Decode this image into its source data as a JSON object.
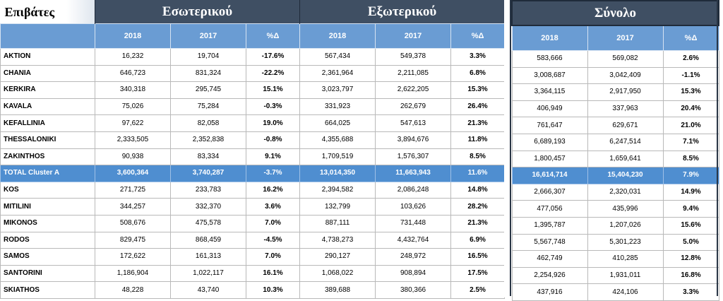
{
  "title": "Επιβάτες",
  "groups": {
    "domestic": "Εσωτερικού",
    "international": "Εξωτερικού",
    "total": "Σύνολο"
  },
  "subheaders": {
    "y2018": "2018",
    "y2017": "2017",
    "pct": "%Δ"
  },
  "rows": [
    {
      "name": "AKTION",
      "d18": "16,232",
      "d17": "19,704",
      "dp": "-17.6%",
      "i18": "567,434",
      "i17": "549,378",
      "ip": "3.3%",
      "t18": "583,666",
      "t17": "569,082",
      "tp": "2.6%"
    },
    {
      "name": "CHANIA",
      "d18": "646,723",
      "d17": "831,324",
      "dp": "-22.2%",
      "i18": "2,361,964",
      "i17": "2,211,085",
      "ip": "6.8%",
      "t18": "3,008,687",
      "t17": "3,042,409",
      "tp": "-1.1%"
    },
    {
      "name": "KERKIRA",
      "d18": "340,318",
      "d17": "295,745",
      "dp": "15.1%",
      "i18": "3,023,797",
      "i17": "2,622,205",
      "ip": "15.3%",
      "t18": "3,364,115",
      "t17": "2,917,950",
      "tp": "15.3%"
    },
    {
      "name": "KAVALA",
      "d18": "75,026",
      "d17": "75,284",
      "dp": "-0.3%",
      "i18": "331,923",
      "i17": "262,679",
      "ip": "26.4%",
      "t18": "406,949",
      "t17": "337,963",
      "tp": "20.4%"
    },
    {
      "name": "KEFALLINIA",
      "d18": "97,622",
      "d17": "82,058",
      "dp": "19.0%",
      "i18": "664,025",
      "i17": "547,613",
      "ip": "21.3%",
      "t18": "761,647",
      "t17": "629,671",
      "tp": "21.0%"
    },
    {
      "name": "THESSALONIKI",
      "d18": "2,333,505",
      "d17": "2,352,838",
      "dp": "-0.8%",
      "i18": "4,355,688",
      "i17": "3,894,676",
      "ip": "11.8%",
      "t18": "6,689,193",
      "t17": "6,247,514",
      "tp": "7.1%"
    },
    {
      "name": "ZAKINTHOS",
      "d18": "90,938",
      "d17": "83,334",
      "dp": "9.1%",
      "i18": "1,709,519",
      "i17": "1,576,307",
      "ip": "8.5%",
      "t18": "1,800,457",
      "t17": "1,659,641",
      "tp": "8.5%"
    },
    {
      "name": "TOTAL Cluster A",
      "d18": "3,600,364",
      "d17": "3,740,287",
      "dp": "-3.7%",
      "i18": "13,014,350",
      "i17": "11,663,943",
      "ip": "11.6%",
      "t18": "16,614,714",
      "t17": "15,404,230",
      "tp": "7.9%",
      "total": true
    },
    {
      "name": "KOS",
      "d18": "271,725",
      "d17": "233,783",
      "dp": "16.2%",
      "i18": "2,394,582",
      "i17": "2,086,248",
      "ip": "14.8%",
      "t18": "2,666,307",
      "t17": "2,320,031",
      "tp": "14.9%"
    },
    {
      "name": "MITILINI",
      "d18": "344,257",
      "d17": "332,370",
      "dp": "3.6%",
      "i18": "132,799",
      "i17": "103,626",
      "ip": "28.2%",
      "t18": "477,056",
      "t17": "435,996",
      "tp": "9.4%"
    },
    {
      "name": "MIKONOS",
      "d18": "508,676",
      "d17": "475,578",
      "dp": "7.0%",
      "i18": "887,111",
      "i17": "731,448",
      "ip": "21.3%",
      "t18": "1,395,787",
      "t17": "1,207,026",
      "tp": "15.6%"
    },
    {
      "name": "RODOS",
      "d18": "829,475",
      "d17": "868,459",
      "dp": "-4.5%",
      "i18": "4,738,273",
      "i17": "4,432,764",
      "ip": "6.9%",
      "t18": "5,567,748",
      "t17": "5,301,223",
      "tp": "5.0%"
    },
    {
      "name": "SAMOS",
      "d18": "172,622",
      "d17": "161,313",
      "dp": "7.0%",
      "i18": "290,127",
      "i17": "248,972",
      "ip": "16.5%",
      "t18": "462,749",
      "t17": "410,285",
      "tp": "12.8%"
    },
    {
      "name": "SANTORINI",
      "d18": "1,186,904",
      "d17": "1,022,117",
      "dp": "16.1%",
      "i18": "1,068,022",
      "i17": "908,894",
      "ip": "17.5%",
      "t18": "2,254,926",
      "t17": "1,931,011",
      "tp": "16.8%"
    },
    {
      "name": "SKIATHOS",
      "d18": "48,228",
      "d17": "43,740",
      "dp": "10.3%",
      "i18": "389,688",
      "i17": "380,366",
      "ip": "2.5%",
      "t18": "437,916",
      "t17": "424,106",
      "tp": "3.3%"
    }
  ]
}
